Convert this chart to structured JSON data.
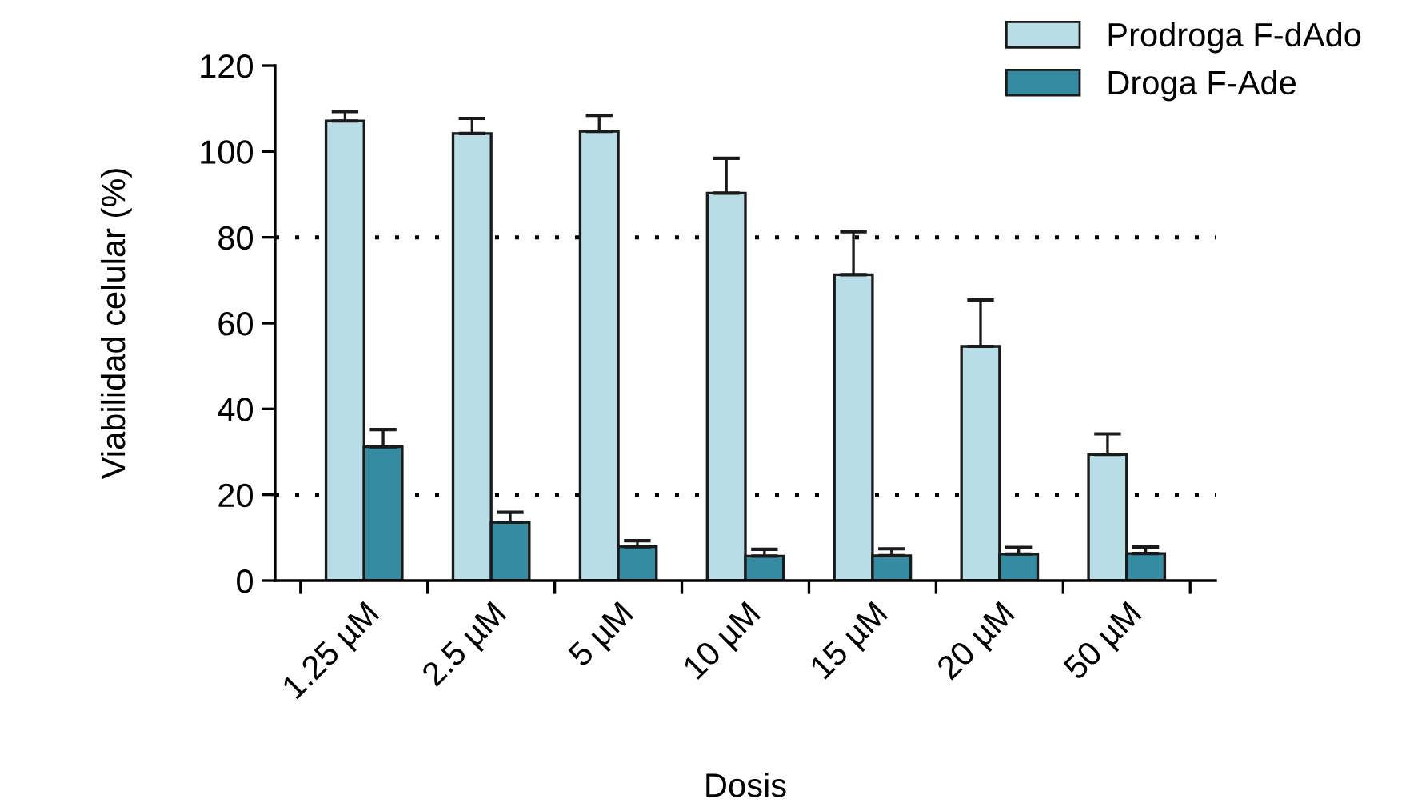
{
  "chart_data": {
    "type": "bar",
    "xlabel": "Dosis",
    "ylabel": "Viabilidad celular (%)",
    "categories": [
      "1.25 µM",
      "2.5 µM",
      "5 µM",
      "10 µM",
      "15 µM",
      "20 µM",
      "50 µM"
    ],
    "series": [
      {
        "name": "Prodroga F-dAdo",
        "color": "#b8dde7",
        "values": [
          107.1,
          104.2,
          104.7,
          90.3,
          71.3,
          54.6,
          29.4
        ],
        "errors": [
          [
            107.1,
            109.3
          ],
          [
            104.2,
            107.7
          ],
          [
            104.7,
            108.4
          ],
          [
            90.3,
            98.4
          ],
          [
            71.3,
            81.3
          ],
          [
            54.6,
            65.4
          ],
          [
            29.4,
            34.2
          ]
        ]
      },
      {
        "name": "Droga F-Ade",
        "color": "#358ba2",
        "values": [
          31.2,
          13.6,
          7.9,
          5.7,
          5.8,
          6.2,
          6.3
        ],
        "errors": [
          [
            31.2,
            35.2
          ],
          [
            13.6,
            15.9
          ],
          [
            7.9,
            9.3
          ],
          [
            5.7,
            7.3
          ],
          [
            5.8,
            7.4
          ],
          [
            6.2,
            7.7
          ],
          [
            6.3,
            7.8
          ]
        ]
      }
    ],
    "ylim": [
      0,
      120
    ],
    "yticks": [
      0,
      20,
      40,
      60,
      80,
      100,
      120
    ],
    "ref_lines": [
      {
        "axis": "y",
        "value": 80,
        "color": "#000000",
        "line_style": "dotted"
      },
      {
        "axis": "y",
        "value": 20,
        "color": "#000000",
        "line_style": "dotted"
      }
    ],
    "grid": false,
    "legend": "top right"
  }
}
